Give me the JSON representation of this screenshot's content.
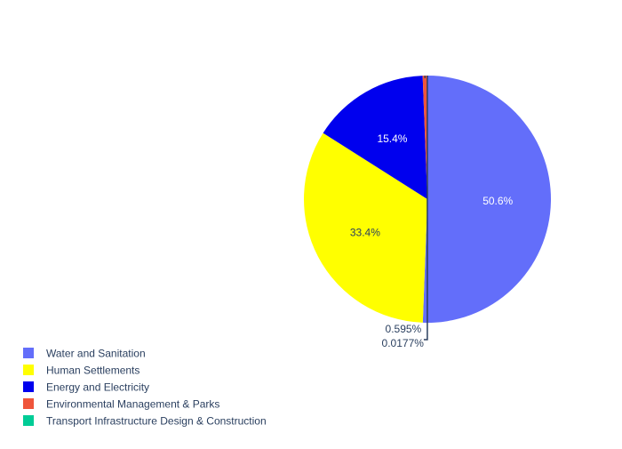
{
  "chart_data": {
    "type": "pie",
    "labels": [
      "Water and Sanitation",
      "Human Settlements",
      "Energy and Electricity",
      "Environmental Management & Parks",
      "Transport Infrastructure Design & Construction"
    ],
    "values": [
      50.6,
      33.4,
      15.4,
      0.595,
      0.0177
    ],
    "percent_labels": [
      "50.6%",
      "33.4%",
      "15.4%",
      "0.595%",
      "0.0177%"
    ],
    "colors": [
      "#636efa",
      "#ffff00",
      "#0000ee",
      "#ef553b",
      "#00cc96"
    ],
    "label_text_colors": [
      "#ffffff",
      "#2a3f5f",
      "#ffffff",
      "#2a3f5f",
      "#2a3f5f"
    ],
    "direction": "clockwise",
    "rotation_start": "top",
    "legend": {
      "position": "bottom-left"
    }
  }
}
